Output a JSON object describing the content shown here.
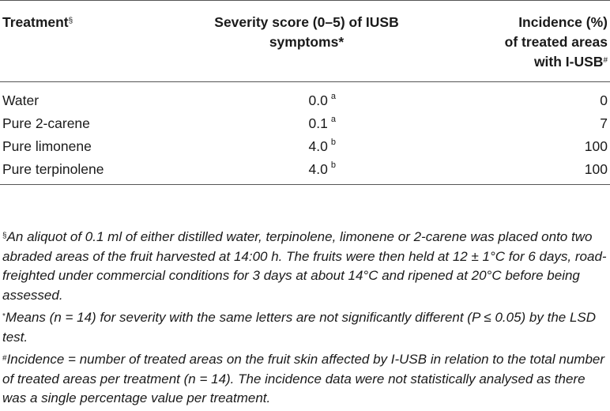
{
  "table": {
    "headers": {
      "treatment": "Treatment",
      "treatment_mark": "§",
      "severity_line1": "Severity score (0–5) of IUSB",
      "severity_line2": "symptoms*",
      "incidence_line1": "Incidence (%)",
      "incidence_line2": "of treated areas",
      "incidence_line3": "with I-USB",
      "incidence_mark": "#"
    },
    "rows": [
      {
        "treatment": "Water",
        "severity": "0.0",
        "letter": "a",
        "incidence": "0"
      },
      {
        "treatment": "Pure 2-carene",
        "severity": "0.1",
        "letter": "a",
        "incidence": "7"
      },
      {
        "treatment": "Pure limonene",
        "severity": "4.0",
        "letter": "b",
        "incidence": "100"
      },
      {
        "treatment": "Pure terpinolene",
        "severity": "4.0",
        "letter": "b",
        "incidence": "100"
      }
    ]
  },
  "footnotes": {
    "section": {
      "mark": "§",
      "text": "An aliquot of 0.1 ml of either distilled water, terpinolene, limonene or 2-carene was placed onto two abraded areas of the fruit harvested at 14:00 h. The fruits were then held at 12 ± 1°C for 6 days, road-freighted under commercial conditions for 3 days at about 14°C and ripened at 20°C before being assessed."
    },
    "asterisk": {
      "mark": "*",
      "text": "Means (n = 14) for severity with the same letters are not significantly different (P ≤ 0.05) by the LSD test."
    },
    "hash": {
      "mark": "#",
      "text": "Incidence = number of treated areas on the fruit skin affected by I-USB in relation to the total number of treated areas per treatment (n = 14). The incidence data were not statistically analysed as there was a single percentage value per treatment."
    }
  }
}
